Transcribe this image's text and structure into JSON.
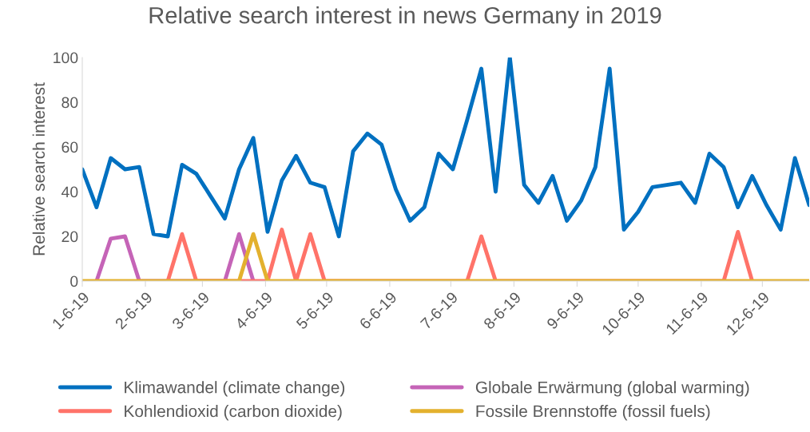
{
  "chart_data": {
    "type": "line",
    "title": "Relative search interest in news Germany in 2019",
    "ylabel": "Relative search interest",
    "x": [
      "2019-01-06",
      "2019-01-13",
      "2019-01-20",
      "2019-01-27",
      "2019-02-03",
      "2019-02-10",
      "2019-02-17",
      "2019-02-24",
      "2019-03-03",
      "2019-03-10",
      "2019-03-17",
      "2019-03-24",
      "2019-03-31",
      "2019-04-07",
      "2019-04-14",
      "2019-04-21",
      "2019-04-28",
      "2019-05-05",
      "2019-05-12",
      "2019-05-19",
      "2019-05-26",
      "2019-06-02",
      "2019-06-09",
      "2019-06-16",
      "2019-06-23",
      "2019-06-30",
      "2019-07-07",
      "2019-07-14",
      "2019-07-21",
      "2019-07-28",
      "2019-08-04",
      "2019-08-11",
      "2019-08-18",
      "2019-08-25",
      "2019-09-01",
      "2019-09-08",
      "2019-09-15",
      "2019-09-22",
      "2019-09-29",
      "2019-10-06",
      "2019-10-13",
      "2019-10-20",
      "2019-10-27",
      "2019-11-03",
      "2019-11-10",
      "2019-11-17",
      "2019-11-24",
      "2019-12-01",
      "2019-12-08",
      "2019-12-15",
      "2019-12-22",
      "2019-12-29"
    ],
    "series": [
      {
        "name": "Klimawandel (climate change)",
        "color": "#0070c0",
        "values": [
          50,
          33,
          55,
          50,
          51,
          21,
          20,
          52,
          48,
          38,
          28,
          50,
          64,
          22,
          45,
          56,
          44,
          42,
          20,
          58,
          66,
          61,
          41,
          27,
          33,
          57,
          50,
          72,
          95,
          40,
          100,
          43,
          35,
          47,
          27,
          36,
          51,
          95,
          23,
          31,
          42,
          43,
          44,
          35,
          57,
          51,
          33,
          47,
          34,
          23,
          55,
          34
        ]
      },
      {
        "name": "Globale Erwärmung (global warming)",
        "color": "#c564b7",
        "values": [
          null,
          0,
          19,
          20,
          0,
          null,
          null,
          null,
          null,
          null,
          0,
          21,
          0,
          null,
          null,
          null,
          null,
          null,
          null,
          null,
          null,
          null,
          null,
          null,
          null,
          null,
          null,
          null,
          null,
          null,
          null,
          null,
          null,
          null,
          null,
          null,
          null,
          null,
          null,
          null,
          null,
          null,
          null,
          null,
          null,
          null,
          null,
          null,
          null,
          null,
          null,
          null
        ]
      },
      {
        "name": "Kohlendioxid (carbon dioxide)",
        "color": "#ff7369",
        "values": [
          null,
          null,
          null,
          null,
          null,
          null,
          0,
          21,
          0,
          null,
          null,
          null,
          null,
          0,
          23,
          0,
          21,
          0,
          null,
          null,
          null,
          null,
          null,
          null,
          null,
          null,
          null,
          0,
          20,
          0,
          null,
          null,
          null,
          null,
          null,
          null,
          null,
          null,
          null,
          null,
          null,
          null,
          null,
          null,
          null,
          0,
          22,
          0,
          null,
          null,
          null,
          null
        ]
      },
      {
        "name": "Fossile Brennstoffe (fossil fuels)",
        "color": "#e3b12e",
        "values": [
          0,
          0,
          0,
          0,
          0,
          0,
          0,
          0,
          0,
          0,
          0,
          0,
          21,
          0,
          0,
          0,
          0,
          0,
          0,
          0,
          0,
          0,
          0,
          0,
          0,
          0,
          0,
          0,
          0,
          0,
          0,
          0,
          0,
          0,
          0,
          0,
          0,
          0,
          0,
          0,
          0,
          0,
          0,
          0,
          0,
          0,
          0,
          0,
          0,
          0,
          0,
          0
        ]
      }
    ],
    "xlim": [
      "2019-01-06",
      "2019-12-29"
    ],
    "xticks": [
      {
        "value": "2019-01-06",
        "label": "1-6-19"
      },
      {
        "value": "2019-02-06",
        "label": "2-6-19"
      },
      {
        "value": "2019-03-06",
        "label": "3-6-19"
      },
      {
        "value": "2019-04-06",
        "label": "4-6-19"
      },
      {
        "value": "2019-05-06",
        "label": "5-6-19"
      },
      {
        "value": "2019-06-06",
        "label": "6-6-19"
      },
      {
        "value": "2019-07-06",
        "label": "7-6-19"
      },
      {
        "value": "2019-08-06",
        "label": "8-6-19"
      },
      {
        "value": "2019-09-06",
        "label": "9-6-19"
      },
      {
        "value": "2019-10-06",
        "label": "10-6-19"
      },
      {
        "value": "2019-11-06",
        "label": "11-6-19"
      },
      {
        "value": "2019-12-06",
        "label": "12-6-19"
      }
    ],
    "ylim": [
      0,
      100
    ],
    "yticks": [
      0,
      20,
      40,
      60,
      80,
      100
    ],
    "grid": false,
    "legend": "bottom",
    "marker": "none",
    "line_style": "solid"
  }
}
